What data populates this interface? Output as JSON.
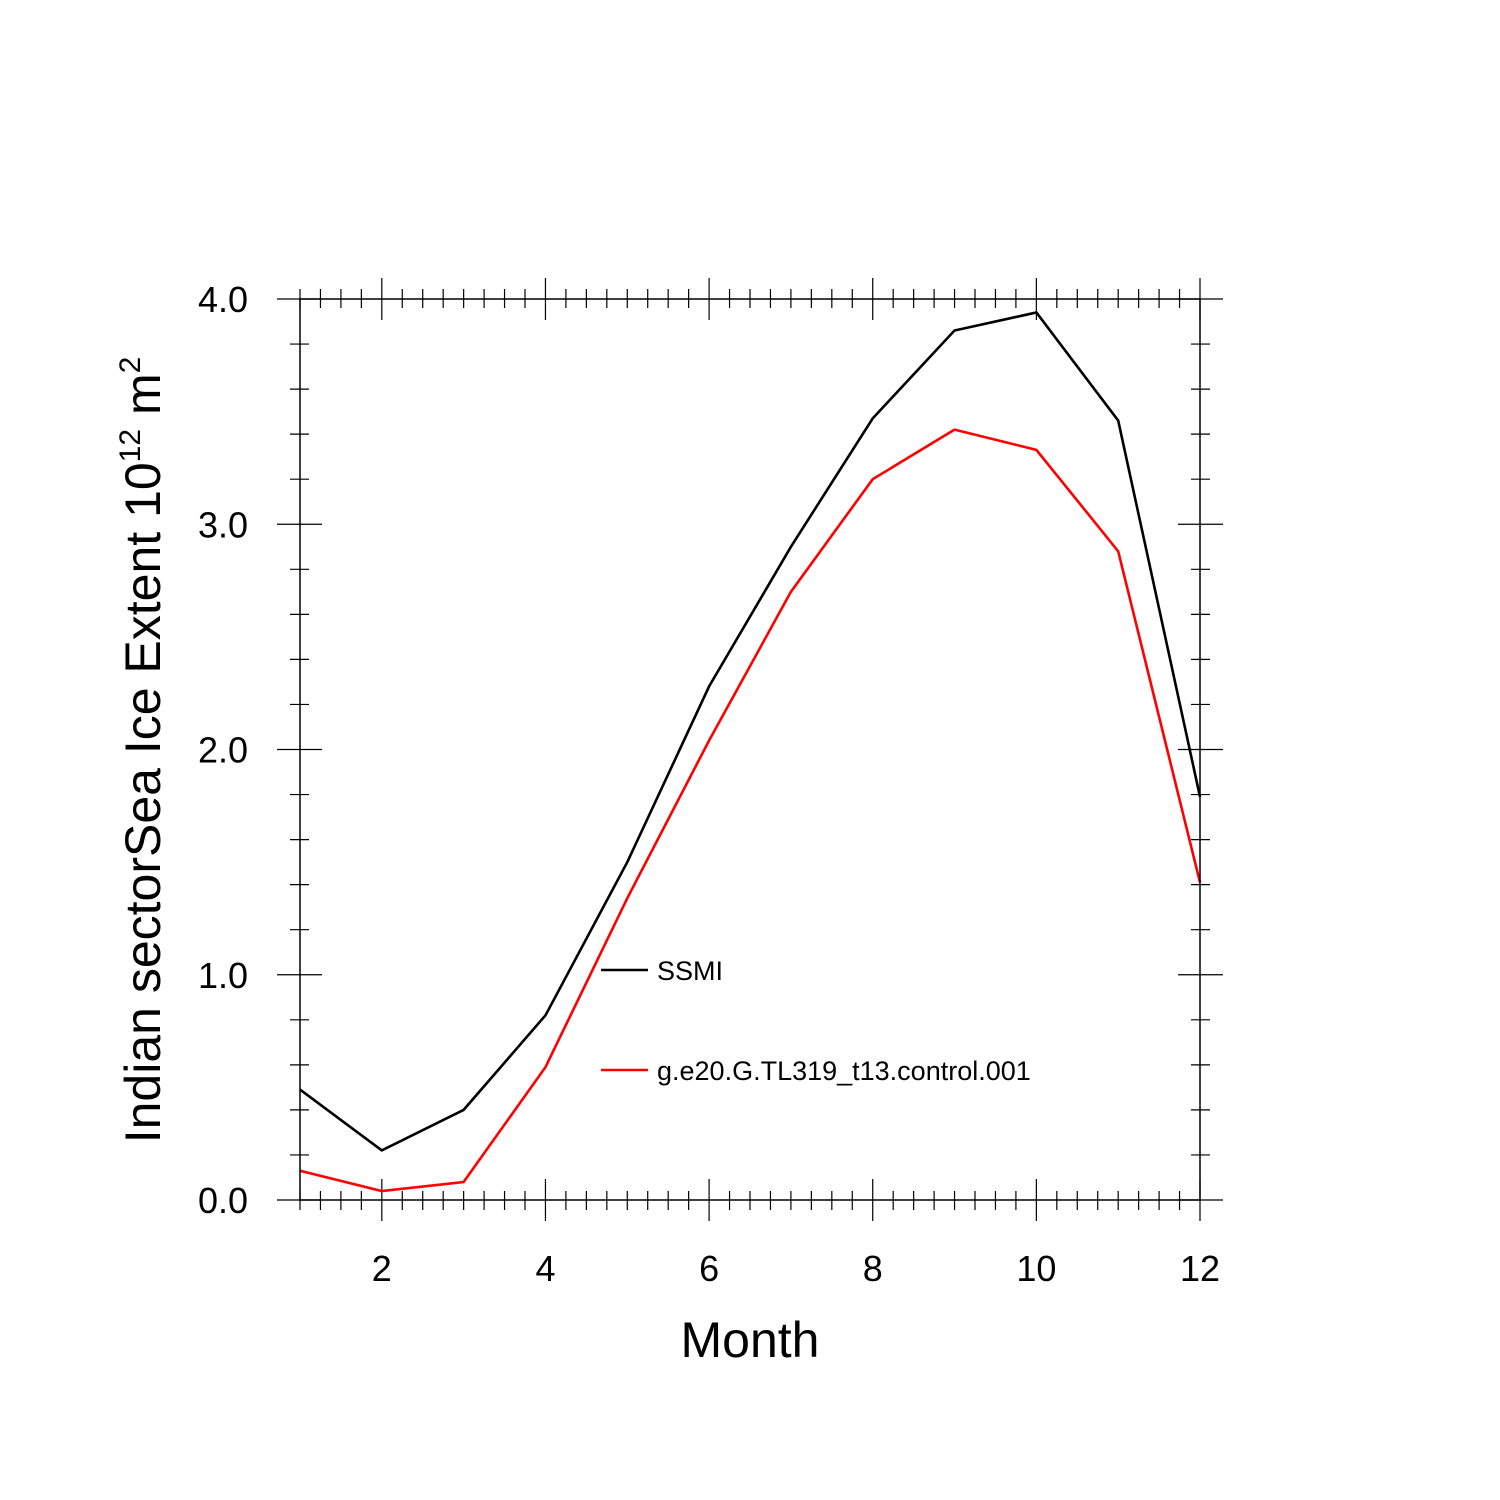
{
  "chart_data": {
    "type": "line",
    "xlabel": "Month",
    "ylabel": {
      "prefix": "Indian sectorSea Ice Extent 10",
      "exp1": "12",
      "mid": " m",
      "exp2": "2"
    },
    "xlim": [
      1,
      12
    ],
    "ylim": [
      0,
      4
    ],
    "x_major_ticks": [
      2,
      4,
      6,
      8,
      10,
      12
    ],
    "x_minor_step": 0.25,
    "y_major_ticks": [
      0,
      1,
      2,
      3,
      4
    ],
    "y_tick_labels": [
      "0.0",
      "1.0",
      "2.0",
      "3.0",
      "4.0"
    ],
    "y_minor_step": 0.2,
    "grid": false,
    "legend_placement": "inside-center",
    "x": [
      1,
      2,
      3,
      4,
      5,
      6,
      7,
      8,
      9,
      10,
      11,
      12
    ],
    "series": [
      {
        "name": "SSMI",
        "color": "#000000",
        "values": [
          0.49,
          0.22,
          0.4,
          0.82,
          1.5,
          2.28,
          2.9,
          3.47,
          3.86,
          3.94,
          3.46,
          1.79
        ]
      },
      {
        "name": "g.e20.G.TL319_t13.control.001",
        "color": "#ff0000",
        "values": [
          0.13,
          0.04,
          0.08,
          0.59,
          1.34,
          2.04,
          2.7,
          3.2,
          3.42,
          3.33,
          2.88,
          1.41
        ]
      }
    ]
  }
}
